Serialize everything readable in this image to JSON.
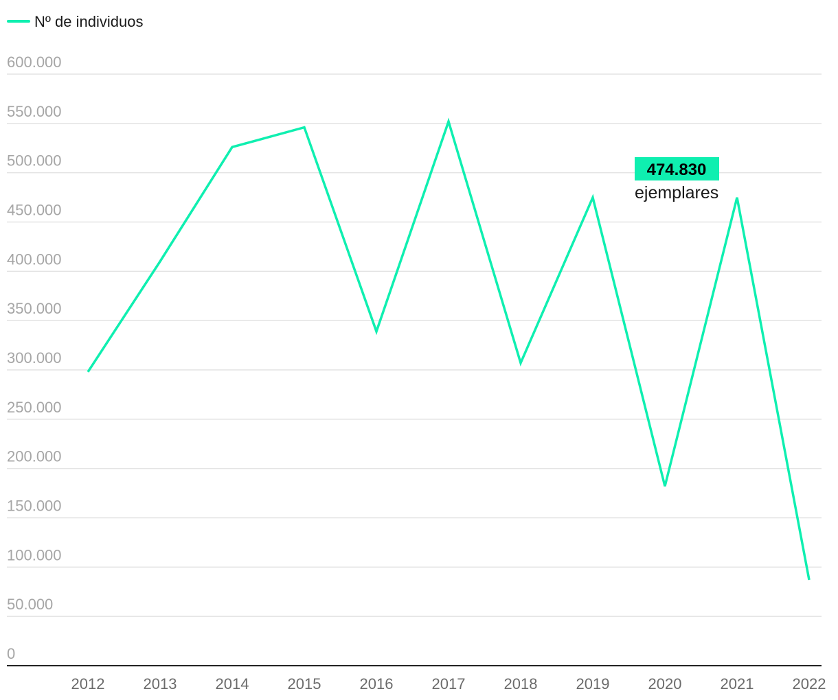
{
  "chart_data": {
    "type": "line",
    "title": "",
    "xlabel": "",
    "ylabel": "",
    "x": [
      "2012",
      "2013",
      "2014",
      "2015",
      "2016",
      "2017",
      "2018",
      "2019",
      "2020",
      "2021",
      "2022"
    ],
    "series": [
      {
        "name": "Nº de individuos",
        "color": "#0fefb0",
        "values": [
          298000,
          410000,
          526000,
          546000,
          339000,
          552000,
          307000,
          474830,
          182000,
          474830,
          87000
        ]
      }
    ],
    "ylim": [
      0,
      600000
    ],
    "yticks": [
      {
        "value": 0,
        "label": "0"
      },
      {
        "value": 50000,
        "label": "50.000"
      },
      {
        "value": 100000,
        "label": "100.000"
      },
      {
        "value": 150000,
        "label": "150.000"
      },
      {
        "value": 200000,
        "label": "200.000"
      },
      {
        "value": 250000,
        "label": "250.000"
      },
      {
        "value": 300000,
        "label": "300.000"
      },
      {
        "value": 350000,
        "label": "350.000"
      },
      {
        "value": 400000,
        "label": "400.000"
      },
      {
        "value": 450000,
        "label": "450.000"
      },
      {
        "value": 500000,
        "label": "500.000"
      },
      {
        "value": 550000,
        "label": "550.000"
      },
      {
        "value": 600000,
        "label": "600.000"
      }
    ],
    "grid": true,
    "legend": {
      "position": "top-left",
      "label": "Nº de individuos"
    },
    "annotation": {
      "x": "2021",
      "value_label": "474.830",
      "unit_label": "ejemplares",
      "highlight_color": "#0fefb0"
    }
  }
}
